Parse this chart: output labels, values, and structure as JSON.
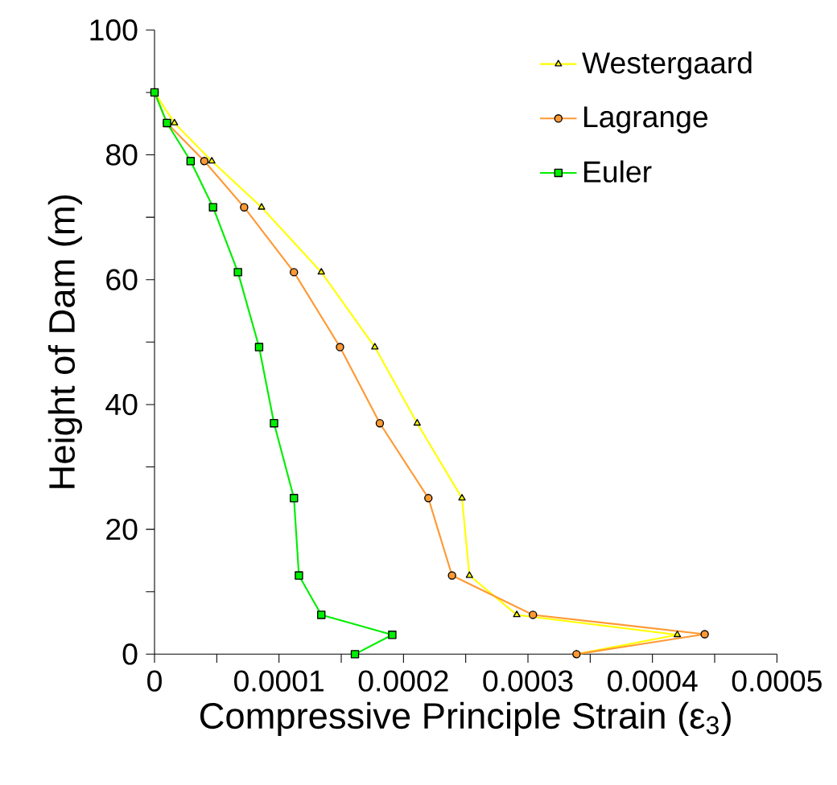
{
  "chart_data": {
    "type": "line",
    "xlabel": "Compressive Principle Strain (ε$_{3}$)",
    "ylabel": "Height of Dam (m)",
    "xlim": [
      0,
      0.0005
    ],
    "ylim": [
      0,
      100
    ],
    "xticks": [
      0,
      {
        "value": 5e-05,
        "label": null
      },
      0.0001,
      {
        "value": 0.00015,
        "label": null
      },
      0.0002,
      {
        "value": 0.00025,
        "label": null
      },
      0.0003,
      {
        "value": 0.00035,
        "label": null
      },
      0.0004,
      {
        "value": 0.00045,
        "label": null
      },
      0.0005
    ],
    "yticks": [
      0,
      {
        "value": 10,
        "label": null
      },
      20,
      {
        "value": 30,
        "label": null
      },
      40,
      {
        "value": 50,
        "label": null
      },
      60,
      {
        "value": 70,
        "label": null
      },
      80,
      {
        "value": 90,
        "label": null
      },
      100
    ],
    "legend": "top right",
    "grid": false,
    "line_style": "solid",
    "series": [
      {
        "name": "Westergaard",
        "color": "#ffff00",
        "marker": "triangle",
        "x": [
          0,
          1.6e-05,
          4.6e-05,
          8.6e-05,
          0.000134,
          0.000177,
          0.000211,
          0.000247,
          0.000253,
          0.000291,
          0.00042,
          0.000339
        ],
        "values": [
          90,
          85.1,
          79,
          71.6,
          61.2,
          49.2,
          37,
          25,
          12.6,
          6.3,
          3.1,
          0
        ]
      },
      {
        "name": "Lagrange",
        "color": "#ff9933",
        "marker": "circle",
        "x": [
          0,
          1e-05,
          4e-05,
          7.2e-05,
          0.000112,
          0.000149,
          0.000181,
          0.00022,
          0.000239,
          0.000304,
          0.000442,
          0.000339
        ],
        "values": [
          90,
          85.1,
          79,
          71.6,
          61.2,
          49.2,
          37,
          25,
          12.6,
          6.3,
          3.2,
          0
        ]
      },
      {
        "name": "Euler",
        "color": "#00ee00",
        "marker": "square",
        "x": [
          0,
          1e-05,
          2.9e-05,
          4.7e-05,
          6.7e-05,
          8.4e-05,
          9.6e-05,
          0.000112,
          0.000116,
          0.000134,
          0.000191,
          0.000161
        ],
        "values": [
          90,
          85.1,
          79,
          71.6,
          61.2,
          49.2,
          37,
          25,
          12.6,
          6.3,
          3.1,
          0
        ]
      }
    ]
  }
}
